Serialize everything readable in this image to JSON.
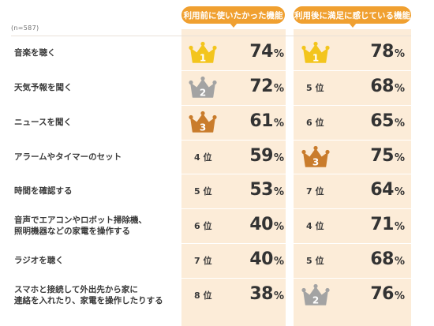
{
  "note": "(n=587)",
  "headers": {
    "before": "利用前に使いたかった機能",
    "after": "利用後に満足に感じている機能"
  },
  "percent_sign": "%",
  "colors": {
    "accent": "#f0a030",
    "shade": "#fcecd8",
    "gold": "#f3c51d",
    "silver": "#a3a3a3",
    "bronze": "#c97c2c"
  },
  "rows": [
    {
      "label": "音楽を聴く",
      "before_rank": "1",
      "before_rank_text": "",
      "before_pct": "74",
      "after_rank": "1",
      "after_rank_text": "",
      "after_pct": "78"
    },
    {
      "label": "天気予報を聞く",
      "before_rank": "2",
      "before_rank_text": "",
      "before_pct": "72",
      "after_rank": "5",
      "after_rank_text": "5 位",
      "after_pct": "68"
    },
    {
      "label": "ニュースを聞く",
      "before_rank": "3",
      "before_rank_text": "",
      "before_pct": "61",
      "after_rank": "6",
      "after_rank_text": "6 位",
      "after_pct": "65"
    },
    {
      "label": "アラームやタイマーのセット",
      "before_rank": "4",
      "before_rank_text": "4 位",
      "before_pct": "59",
      "after_rank": "3",
      "after_rank_text": "",
      "after_pct": "75"
    },
    {
      "label": "時間を確認する",
      "before_rank": "5",
      "before_rank_text": "5 位",
      "before_pct": "53",
      "after_rank": "7",
      "after_rank_text": "7 位",
      "after_pct": "64"
    },
    {
      "label": "音声でエアコンやロボット掃除機、\n照明機器などの家電を操作する",
      "before_rank": "6",
      "before_rank_text": "6 位",
      "before_pct": "40",
      "after_rank": "4",
      "after_rank_text": "4 位",
      "after_pct": "71"
    },
    {
      "label": "ラジオを聴く",
      "before_rank": "7",
      "before_rank_text": "7 位",
      "before_pct": "40",
      "after_rank": "5",
      "after_rank_text": "5 位",
      "after_pct": "68"
    },
    {
      "label": "スマホと接続して外出先から家に\n連絡を入れたり、家電を操作したりする",
      "before_rank": "8",
      "before_rank_text": "8 位",
      "before_pct": "38",
      "after_rank": "2",
      "after_rank_text": "",
      "after_pct": "76"
    }
  ],
  "chart_data": {
    "type": "table",
    "columns": [
      "利用前に使いたかった機能",
      "利用後に満足に感じている機能"
    ],
    "categories": [
      "音楽を聴く",
      "天気予報を聞く",
      "ニュースを聞く",
      "アラームやタイマーのセット",
      "時間を確認する",
      "音声でエアコンやロボット掃除機、照明機器などの家電を操作する",
      "ラジオを聴く",
      "スマホと接続して外出先から家に連絡を入れたり、家電を操作したりする"
    ],
    "series": [
      {
        "name": "利用前に使いたかった機能",
        "ranks": [
          1,
          2,
          3,
          4,
          5,
          6,
          7,
          8
        ],
        "values": [
          74,
          72,
          61,
          59,
          53,
          40,
          40,
          38
        ]
      },
      {
        "name": "利用後に満足に感じている機能",
        "ranks": [
          1,
          5,
          6,
          3,
          7,
          4,
          5,
          2
        ],
        "values": [
          78,
          68,
          65,
          75,
          64,
          71,
          68,
          76
        ]
      }
    ],
    "unit": "%"
  }
}
